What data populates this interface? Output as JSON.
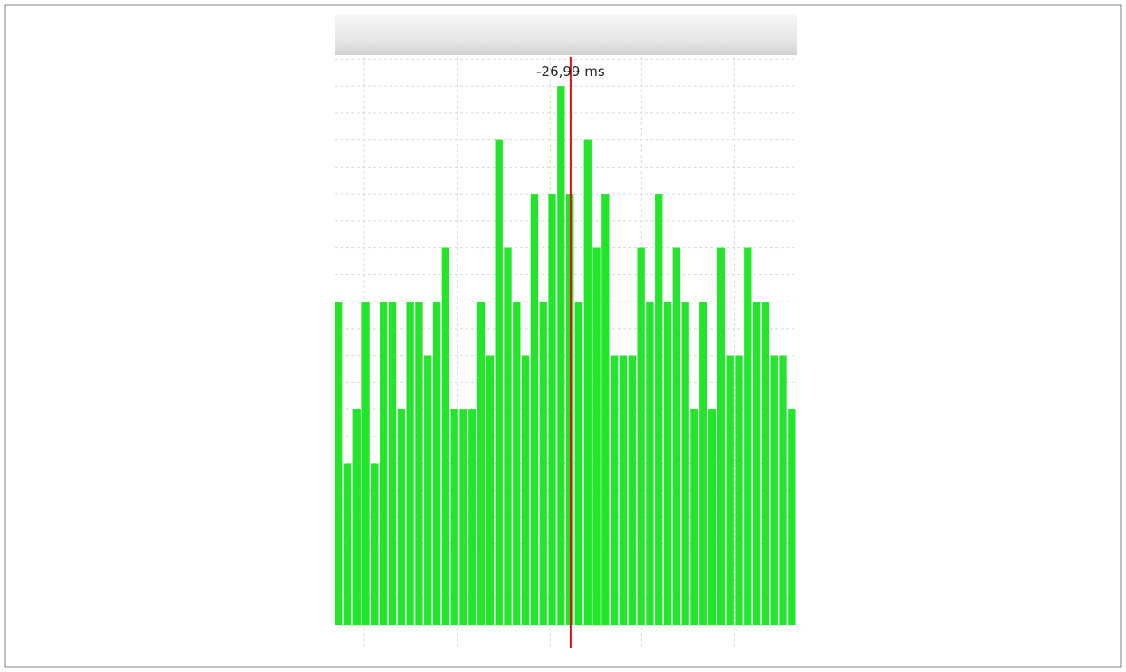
{
  "chart_data": {
    "type": "bar",
    "values": [
      6,
      3,
      4,
      6,
      3,
      6,
      6,
      4,
      6,
      6,
      5,
      6,
      7,
      4,
      4,
      4,
      6,
      5,
      9,
      7,
      6,
      5,
      8,
      6,
      8,
      10,
      8,
      6,
      9,
      7,
      8,
      5,
      5,
      5,
      7,
      6,
      8,
      6,
      7,
      6,
      4,
      6,
      4,
      7,
      5,
      5,
      7,
      6,
      6,
      5,
      5,
      4
    ],
    "color": "#22e62a",
    "ylim": [
      -0.42,
      10.54
    ],
    "yticks": [
      0.5,
      1,
      1.5,
      2,
      2.5,
      3,
      3.5,
      4,
      4.5,
      5,
      5.5,
      6,
      6.5,
      7,
      7.5,
      8,
      8.5,
      9,
      9.5,
      10,
      10.5
    ],
    "xlim": [
      0,
      52
    ],
    "xticks": [
      3.27,
      13.8,
      24.2,
      34.5,
      44.9
    ],
    "grid": true,
    "cursor": {
      "x": 26.5,
      "label": "-26,99 ms",
      "color": "#e01010"
    }
  }
}
